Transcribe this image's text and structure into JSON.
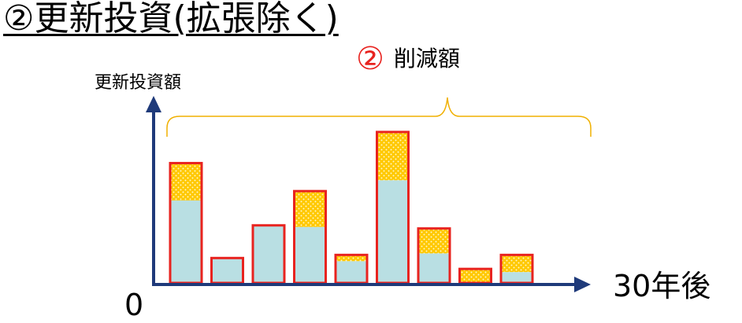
{
  "heading": "②更新投資(拡張除く)",
  "chart_data": {
    "type": "bar",
    "stacked": true,
    "ylabel": "更新投資額",
    "origin_label": "0",
    "x_end_label": "30年後",
    "annotation": {
      "marker": "②",
      "text": "削減額"
    },
    "ylim": [
      0,
      100
    ],
    "bars": [
      {
        "base": 53,
        "reduction": 24
      },
      {
        "base": 16,
        "reduction": 0
      },
      {
        "base": 37,
        "reduction": 0
      },
      {
        "base": 36,
        "reduction": 23
      },
      {
        "base": 14,
        "reduction": 4
      },
      {
        "base": 66,
        "reduction": 31
      },
      {
        "base": 19,
        "reduction": 16
      },
      {
        "base": 0,
        "reduction": 9
      },
      {
        "base": 7,
        "reduction": 11
      }
    ],
    "colors": {
      "base": "#b9dfe3",
      "reduction": "#ffc800",
      "reduction_dots": "#fff6c8",
      "bar_outline": "#e8231f",
      "axis": "#1f3a7a",
      "brace": "#f0b000"
    }
  }
}
